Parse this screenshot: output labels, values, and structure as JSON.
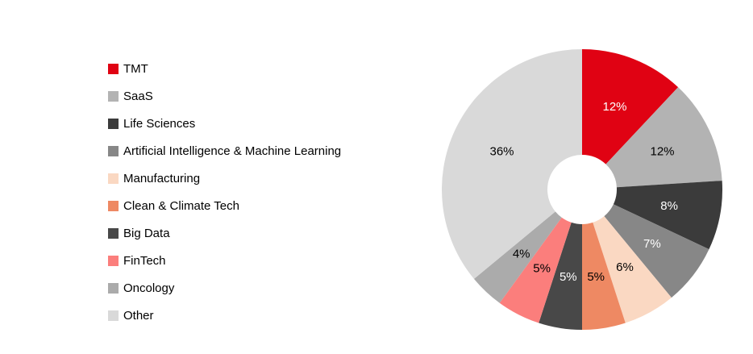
{
  "background_color": "#FFFFFF",
  "chart_data": {
    "type": "pie",
    "variant": "donut",
    "title": "",
    "legend_position": "left",
    "start_angle_deg": 0,
    "direction": "clockwise",
    "hole_ratio": 0.25,
    "categories": [
      "TMT",
      "SaaS",
      "Life Sciences",
      "Artificial Intelligence & Machine Learning",
      "Manufacturing",
      "Clean & Climate Tech",
      "Big Data",
      "FinTech",
      "Oncology",
      "Other"
    ],
    "values": [
      12,
      12,
      8,
      7,
      6,
      5,
      5,
      5,
      4,
      36
    ],
    "labels": [
      "12%",
      "12%",
      "8%",
      "7%",
      "6%",
      "5%",
      "5%",
      "5%",
      "4%",
      "36%"
    ],
    "colors": [
      "#E00213",
      "#B3B3B3",
      "#3B3B3B",
      "#878787",
      "#FAD8C2",
      "#EE8963",
      "#484848",
      "#FB7E7C",
      "#ABABAB",
      "#D9D9D9"
    ],
    "label_colors": [
      "#FFFFFF",
      "#000000",
      "#FFFFFF",
      "#FFFFFF",
      "#000000",
      "#000000",
      "#FFFFFF",
      "#000000",
      "#000000",
      "#000000"
    ]
  }
}
